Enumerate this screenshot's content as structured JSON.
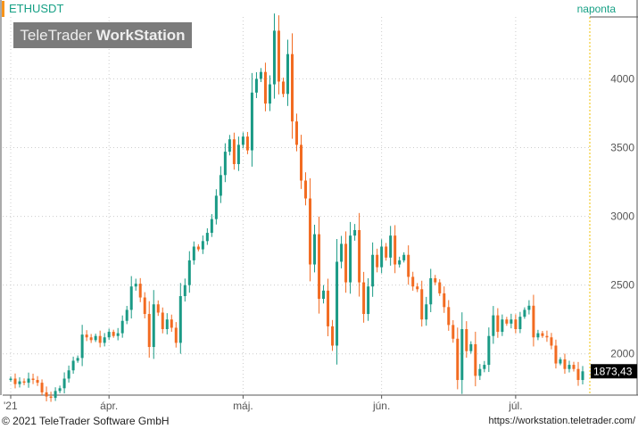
{
  "header": {
    "symbol": "ETHUSDT",
    "period": "naponta",
    "logo_light": "TeleTrader ",
    "logo_bold": "WorkStation"
  },
  "footer": {
    "copyright": "© 2021  TeleTrader Software GmbH",
    "url": "https://workstation.teletrader.com/"
  },
  "chart_data": {
    "type": "candlestick",
    "title": "ETHUSDT",
    "interval": "naponta",
    "last_price": "1873,43",
    "ylim": [
      1700,
      4450
    ],
    "yticks": [
      2000,
      2500,
      3000,
      3500,
      4000
    ],
    "ytick_labels": [
      "2000",
      "2500",
      "3000",
      "3500",
      "4000"
    ],
    "xticks": [
      {
        "index": 0,
        "label": "'21"
      },
      {
        "index": 22,
        "label": "ápr."
      },
      {
        "index": 52,
        "label": "máj."
      },
      {
        "index": 83,
        "label": "jún."
      },
      {
        "index": 113,
        "label": "júl."
      }
    ],
    "grid": true,
    "colors": {
      "up": "#1a9a85",
      "down": "#f26b21",
      "grid": "#cccccc",
      "last_bg": "#000000",
      "last_fg": "#ffffff"
    },
    "close": [
      1820,
      1780,
      1800,
      1790,
      1820,
      1810,
      1790,
      1720,
      1690,
      1680,
      1730,
      1750,
      1820,
      1880,
      1950,
      1970,
      2140,
      2120,
      2100,
      2130,
      2080,
      2120,
      2160,
      2130,
      2150,
      2240,
      2320,
      2490,
      2510,
      2410,
      2290,
      2050,
      2360,
      2300,
      2180,
      2250,
      2190,
      2080,
      2420,
      2500,
      2680,
      2780,
      2760,
      2820,
      2880,
      2980,
      3150,
      3300,
      3470,
      3560,
      3380,
      3520,
      3580,
      3480,
      3900,
      4000,
      4050,
      3820,
      3960,
      4350,
      3980,
      3890,
      4180,
      3690,
      3520,
      3260,
      3130,
      2650,
      2870,
      2400,
      2460,
      2200,
      2060,
      2670,
      2800,
      2520,
      2860,
      2900,
      2520,
      2290,
      2490,
      2720,
      2630,
      2780,
      2700,
      2860,
      2650,
      2680,
      2720,
      2560,
      2490,
      2470,
      2250,
      2360,
      2550,
      2520,
      2440,
      2340,
      2210,
      2110,
      1810,
      2180,
      2020,
      2070,
      1840,
      1890,
      1920,
      2130,
      2280,
      2160,
      2250,
      2220,
      2250,
      2180,
      2270,
      2320,
      2350,
      2120,
      2150,
      2130,
      2120,
      2060,
      1930,
      1960,
      1890,
      1920,
      1890,
      1810,
      1873
    ]
  }
}
